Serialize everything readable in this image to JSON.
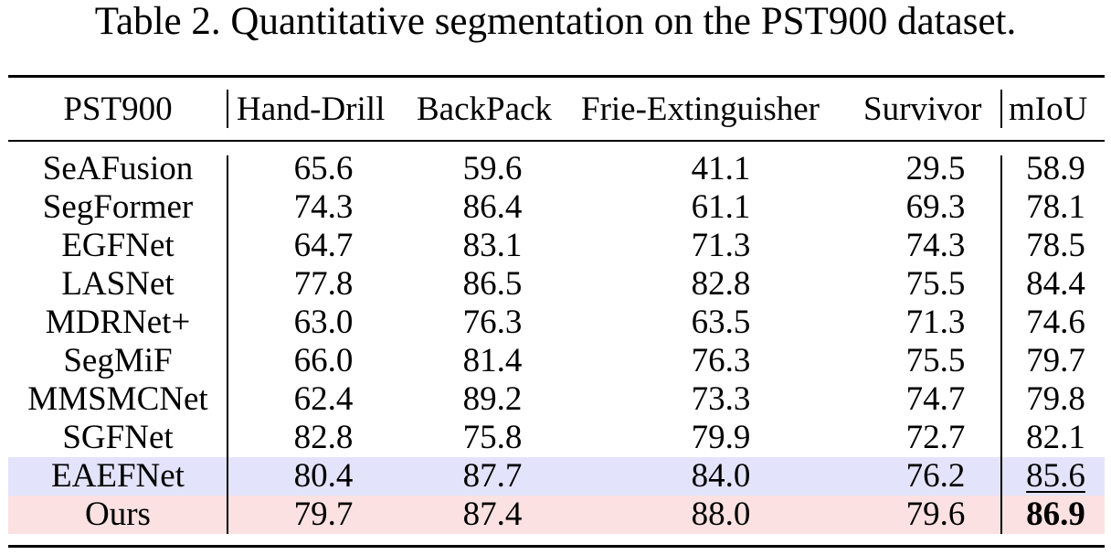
{
  "caption": "Table 2. Quantitative segmentation on the PST900 dataset.",
  "headers": [
    "PST900",
    "Hand-Drill",
    "BackPack",
    "Frie-Extinguisher",
    "Survivor",
    "mIoU"
  ],
  "rows": [
    {
      "method": "SeAFusion",
      "values": [
        "65.6",
        "59.6",
        "41.1",
        "29.5",
        "58.9"
      ]
    },
    {
      "method": "SegFormer",
      "values": [
        "74.3",
        "86.4",
        "61.1",
        "69.3",
        "78.1"
      ]
    },
    {
      "method": "EGFNet",
      "values": [
        "64.7",
        "83.1",
        "71.3",
        "74.3",
        "78.5"
      ]
    },
    {
      "method": "LASNet",
      "values": [
        "77.8",
        "86.5",
        "82.8",
        "75.5",
        "84.4"
      ]
    },
    {
      "method": "MDRNet+",
      "values": [
        "63.0",
        "76.3",
        "63.5",
        "71.3",
        "74.6"
      ]
    },
    {
      "method": "SegMiF",
      "values": [
        "66.0",
        "81.4",
        "76.3",
        "75.5",
        "79.7"
      ]
    },
    {
      "method": "MMSMCNet",
      "values": [
        "62.4",
        "89.2",
        "73.3",
        "74.7",
        "79.8"
      ]
    },
    {
      "method": "SGFNet",
      "values": [
        "82.8",
        "75.8",
        "79.9",
        "72.7",
        "82.1"
      ]
    },
    {
      "method": "EAEFNet",
      "values": [
        "80.4",
        "87.7",
        "84.0",
        "76.2",
        "85.6"
      ],
      "highlight": "#e3e3fb",
      "emphasis": "underline-miou"
    },
    {
      "method": "Ours",
      "values": [
        "79.7",
        "87.4",
        "88.0",
        "79.6",
        "86.9"
      ],
      "highlight": "#fbe1e1",
      "emphasis": "bold-miou"
    }
  ]
}
